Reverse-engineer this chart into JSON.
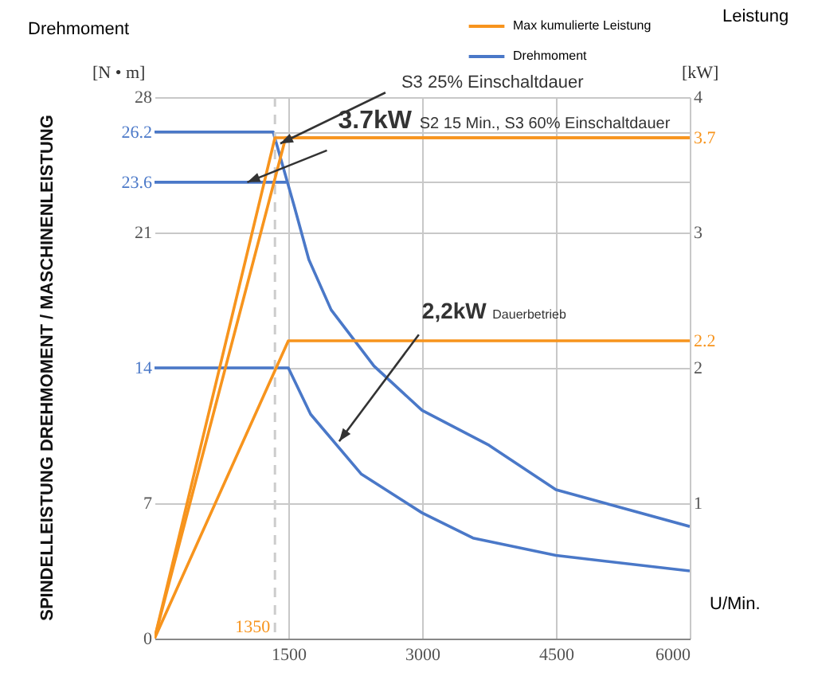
{
  "chart_data": {
    "type": "line",
    "title": "SPINDELLEISTUNG DREHMOMENT / MASCHINENLEISTUNG",
    "ylabel": "Drehmoment",
    "y2label": "Leistung",
    "xlabel": "U/Min.",
    "series": [
      {
        "name": "Max kumulierte Leistung",
        "color": "#f7941d",
        "axis": "y2",
        "x": [
          0,
          1350,
          6000
        ],
        "values": [
          0,
          3.7,
          3.7
        ]
      },
      {
        "color": "#f7941d",
        "axis": "y2",
        "x": [
          0,
          1470,
          6000
        ],
        "values": [
          0,
          3.7,
          3.7
        ]
      },
      {
        "color": "#f7941d",
        "axis": "y2",
        "x": [
          0,
          1500,
          6000
        ],
        "values": [
          0,
          2.2,
          2.2
        ]
      },
      {
        "name": "Drehmoment",
        "color": "#4a78c8",
        "x": [
          0,
          1330,
          1570,
          1730,
          1980,
          2460,
          3000,
          3750,
          4500,
          6000
        ],
        "values": [
          26.2,
          26.2,
          22.3,
          19.6,
          17,
          14.1,
          11.8,
          10,
          7.7,
          5.8
        ]
      },
      {
        "color": "#4a78c8",
        "x": [
          0,
          1480
        ],
        "values": [
          23.6,
          23.6
        ]
      },
      {
        "color": "#4a78c8",
        "x": [
          0,
          1500,
          1750,
          2320,
          3000,
          3570,
          4500,
          6000
        ],
        "values": [
          14,
          14,
          11.6,
          8.5,
          6.5,
          5.2,
          4.3,
          3.5
        ]
      }
    ],
    "xlim": [
      0,
      6000
    ],
    "xticks": [
      1500,
      3000,
      4500,
      6000
    ],
    "ylim": [
      0,
      28
    ],
    "yticks": [
      0,
      7,
      14,
      21,
      23.6,
      26.2,
      28
    ],
    "y2lim": [
      0,
      4
    ],
    "y2ticks": [
      1,
      2,
      2.2,
      3,
      3.7,
      4
    ],
    "ref_lines": [
      {
        "axis": "x",
        "value": 1350,
        "label": "1350",
        "color": "#cccccc",
        "line_style": "dashed"
      }
    ],
    "annotations": [
      {
        "text": "S3 25% Einschaltdauer",
        "x": 1410,
        "y": 25.6
      },
      {
        "text": "3.7kW",
        "x": 1040,
        "y": 23.6
      },
      "S2 15 Min., S3 60% Einschaltdauer",
      {
        "text": "2,2kW",
        "x": 2070,
        "y": 10.2
      },
      "Dauerbetrieb",
      "[N • m]",
      "[kW]"
    ],
    "grid": true,
    "legend": "top right"
  }
}
